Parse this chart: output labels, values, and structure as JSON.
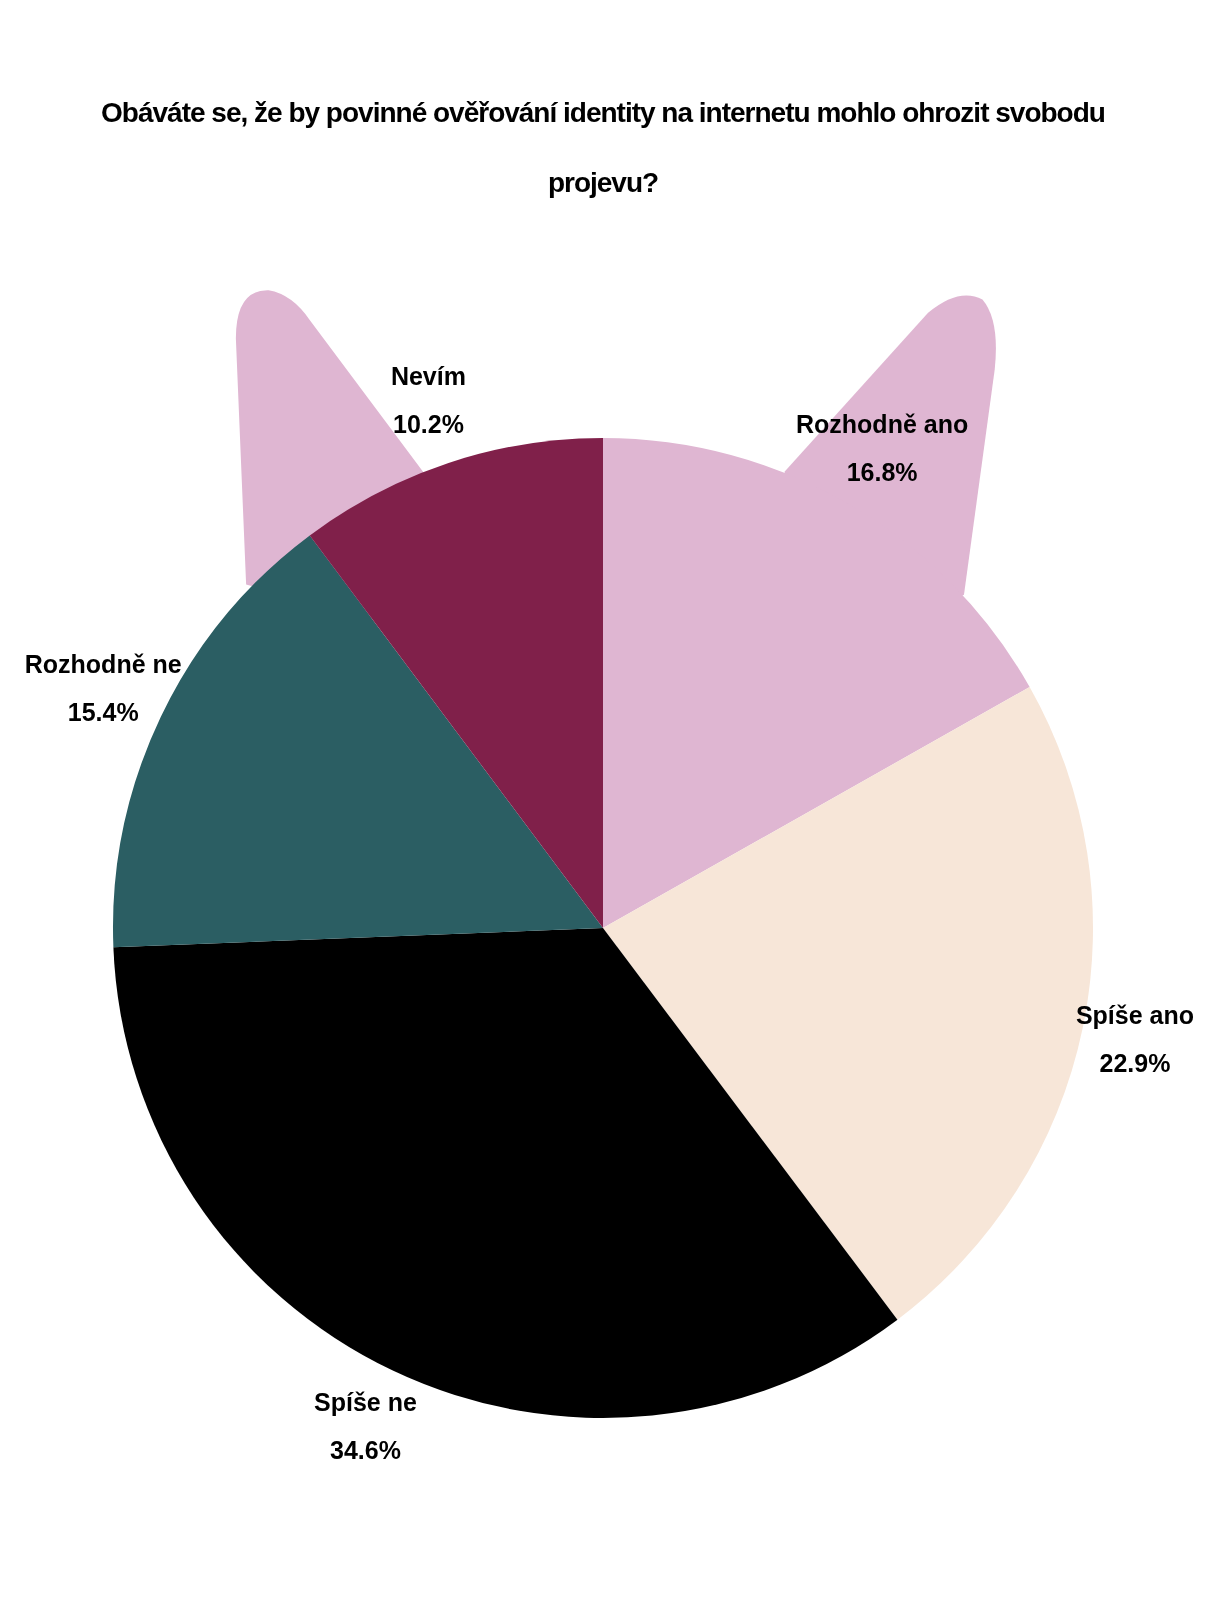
{
  "chart_data": {
    "type": "pie",
    "title": "Obáváte se, že by povinné ověřování identity na internetu mohlo ohrozit svobodu projevu?",
    "categories": [
      "Rozhodně ano",
      "Spíše ano",
      "Spíše ne",
      "Rozhodně ne",
      "Nevím"
    ],
    "values": [
      16.8,
      22.9,
      34.6,
      15.4,
      10.2
    ],
    "value_labels": [
      "16.8%",
      "22.9%",
      "34.6%",
      "15.4%",
      "10.2%"
    ],
    "colors": [
      "#dfb6d2",
      "#f7e6d8",
      "#000000",
      "#2b5e63",
      "#80204a"
    ],
    "legend": false
  }
}
